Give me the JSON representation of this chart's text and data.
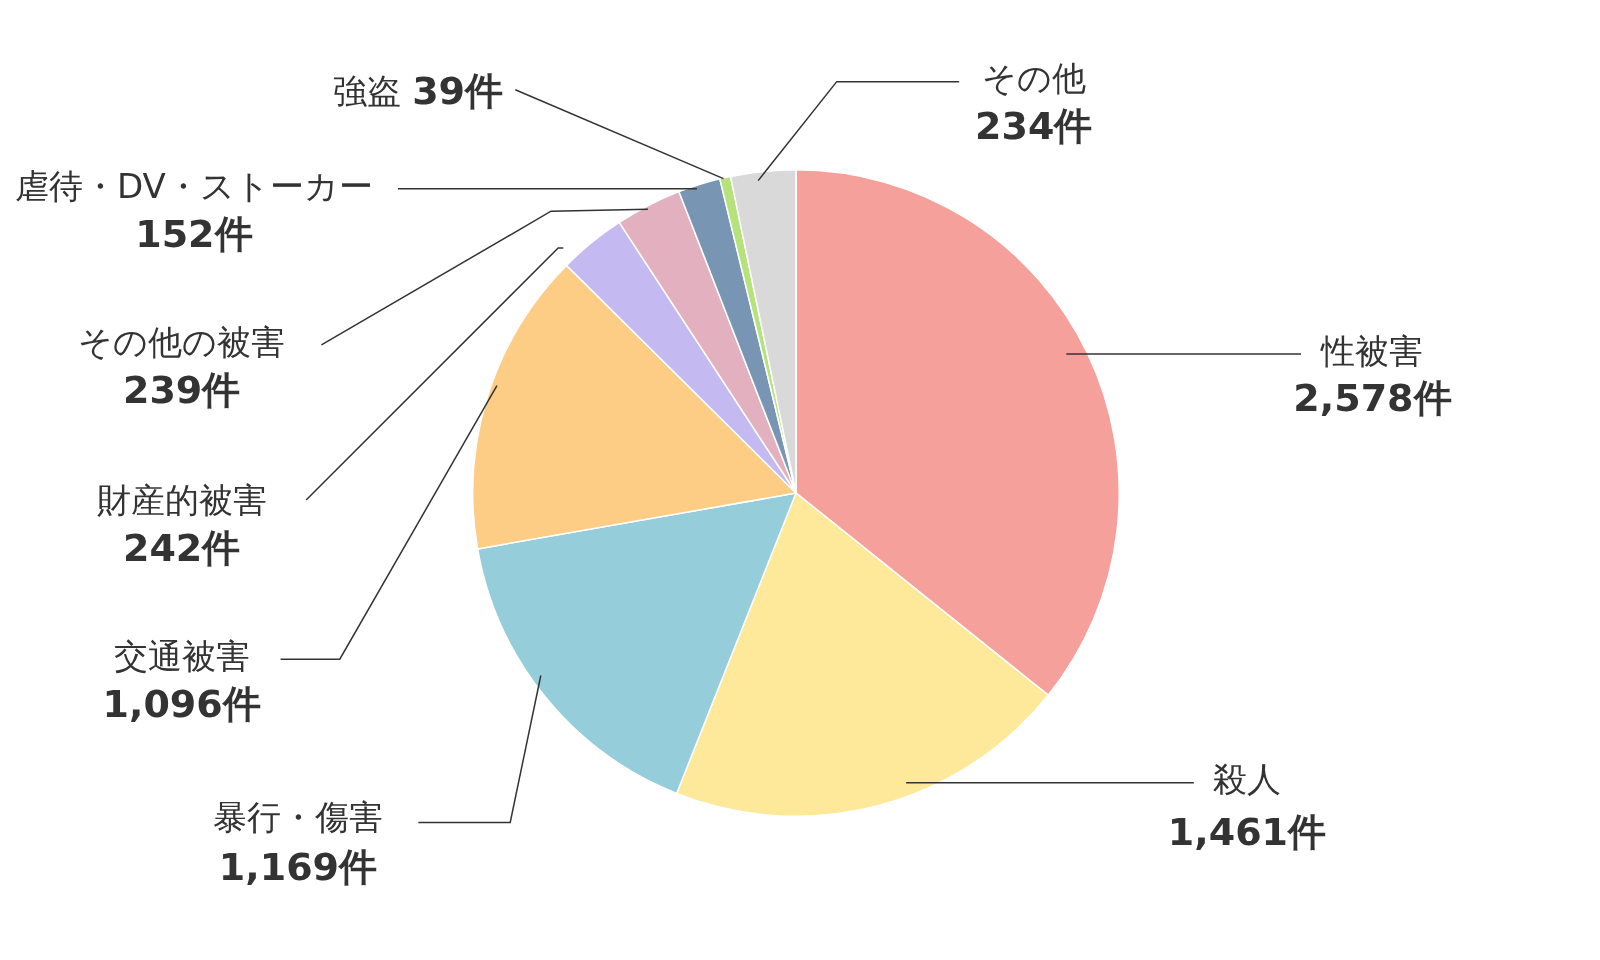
{
  "chart_data": {
    "type": "pie",
    "categories": [
      "性被害",
      "殺人",
      "暴行・傷害",
      "交通被害",
      "財産的被害",
      "その他の被害",
      "虐待・DV・ストーカー",
      "強盗",
      "その他"
    ],
    "values": [
      2578,
      1461,
      1169,
      1096,
      242,
      239,
      152,
      39,
      234
    ],
    "colors": [
      "#f6a09b",
      "#fee899",
      "#95cddb",
      "#fdcc85",
      "#c4b9f1",
      "#e2b0be",
      "#7896b4",
      "#b5e27a",
      "#d9d9d9"
    ],
    "value_labels": [
      "2,578件",
      "1,461件",
      "1,169件",
      "1,096件",
      "242件",
      "239件",
      "152件",
      "39件",
      "234件"
    ]
  }
}
